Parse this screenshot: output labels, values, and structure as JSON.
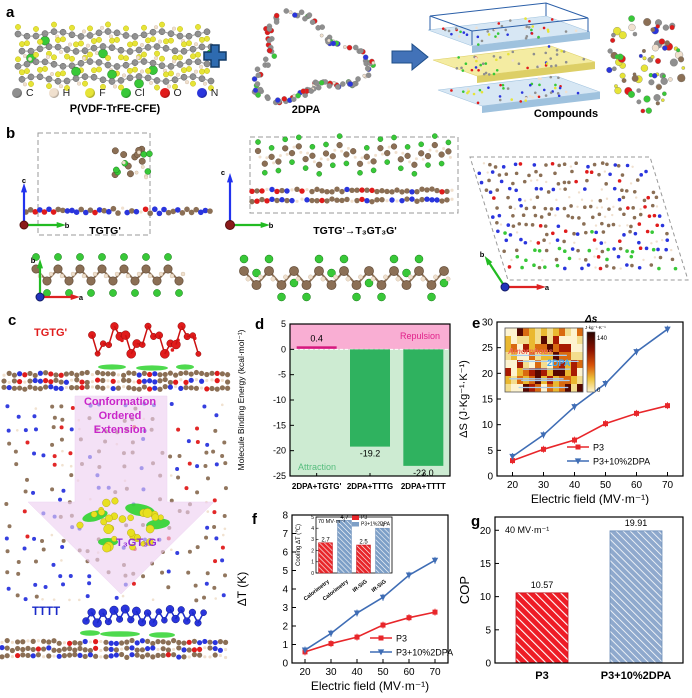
{
  "panels": {
    "a": {
      "label": "a",
      "polymer_label": "P(VDF-TrFE-CFE)",
      "dopant_label": "2DPA",
      "compound_label": "Compounds",
      "legend": [
        {
          "symbol": "C",
          "color": "#8f8f8f"
        },
        {
          "symbol": "H",
          "color": "#f0e0ce"
        },
        {
          "symbol": "F",
          "color": "#e6e437"
        },
        {
          "symbol": "Cl",
          "color": "#38c838"
        },
        {
          "symbol": "O",
          "color": "#e01b1b"
        },
        {
          "symbol": "N",
          "color": "#2a35dd"
        }
      ]
    },
    "b": {
      "label": "b",
      "left_conformation": "TGTG'",
      "transition": "TGTG'→T₃GT₃G'",
      "axes": {
        "a": "a",
        "b": "b",
        "c": "c"
      }
    },
    "c": {
      "label": "c",
      "top_conformation": "TGTG'",
      "arrow_text": [
        "Conformation",
        "Ordered",
        "Extension"
      ],
      "mid_conformation": "T₃GT₃G'",
      "bottom_conformation": "TTTT"
    },
    "d": {
      "label": "d"
    },
    "e": {
      "label": "e"
    },
    "f": {
      "label": "f"
    },
    "g": {
      "label": "g"
    }
  },
  "chart_data": [
    {
      "id": "d",
      "panel": "d",
      "type": "bar",
      "categories": [
        "2DPA+TGTG'",
        "2DPA+TTTG",
        "2DPA+TTTT"
      ],
      "values": [
        0.4,
        -19.2,
        -23.0
      ],
      "value_labels": [
        "0.4",
        "-19.2",
        "-23.0"
      ],
      "ylabel": "Molecule Binding Energy (kcal·mol⁻¹)",
      "ylim": [
        -25,
        5
      ],
      "yticks": [
        5,
        0,
        -5,
        -10,
        -15,
        -20,
        -25
      ],
      "region_positive_label": "Repulsion",
      "region_negative_label": "Attraction",
      "colors": {
        "region_positive": "#f9aed3",
        "region_negative": "#cdebd2",
        "bar_positive": "#d6187f",
        "bar_negative": "#2fb25f",
        "repulsion_text": "#e0218a",
        "attraction_text": "#57bd7e"
      }
    },
    {
      "id": "e",
      "panel": "e",
      "type": "line",
      "x": [
        20,
        30,
        40,
        50,
        60,
        70
      ],
      "series": [
        {
          "name": "P3",
          "color": "#e8262a",
          "marker": "square",
          "values": [
            3.0,
            5.2,
            7.0,
            10.2,
            12.2,
            13.7
          ]
        },
        {
          "name": "P3+10%2DPA",
          "color": "#3f6db5",
          "marker": "triangle",
          "values": [
            3.8,
            8.0,
            13.5,
            18.0,
            24.2,
            28.6
          ]
        }
      ],
      "xlabel": "Electric field (MV·m⁻¹)",
      "ylabel": "ΔS (J·Kg⁻¹·K⁻¹)",
      "xlim": [
        15,
        75
      ],
      "ylim": [
        0,
        30
      ],
      "xticks": [
        20,
        30,
        40,
        50,
        60,
        70
      ],
      "yticks": [
        0,
        5,
        10,
        15,
        20,
        25,
        30
      ],
      "legend_position": "bottom-right",
      "inset": {
        "type": "heatmap-image",
        "title": "Δs",
        "colorbar_unit": "J·kg⁻¹·K⁻¹",
        "colorbar_top": "140",
        "colorbar_bottom": "0",
        "overlay_red": "Amorphous",
        "overlay_blue": "2DPA"
      }
    },
    {
      "id": "f",
      "panel": "f",
      "type": "line",
      "x": [
        20,
        30,
        40,
        50,
        60,
        70
      ],
      "series": [
        {
          "name": "P3",
          "color": "#e8262a",
          "marker": "square",
          "values": [
            0.6,
            1.05,
            1.4,
            2.05,
            2.45,
            2.75
          ]
        },
        {
          "name": "P3+10%2DPA",
          "color": "#3f6db5",
          "marker": "triangle",
          "values": [
            0.7,
            1.6,
            2.7,
            3.55,
            4.75,
            5.55
          ]
        }
      ],
      "xlabel": "Electric field (MV·m⁻¹)",
      "ylabel": "ΔT (K)",
      "xlim": [
        15,
        75
      ],
      "ylim": [
        0,
        8
      ],
      "xticks": [
        20,
        30,
        40,
        50,
        60,
        70
      ],
      "yticks": [
        0,
        1,
        2,
        3,
        4,
        5,
        6,
        7,
        8
      ],
      "legend_position": "bottom-right",
      "inset": {
        "type": "bar",
        "annotation": "70 MV·m⁻¹",
        "ylabel": "Cooling ΔT (℃)",
        "ylim": [
          0,
          5
        ],
        "yticks": [
          0,
          1,
          2,
          3,
          4,
          5
        ],
        "categories": [
          "Calorimetry",
          "Calorimetry",
          "IR-SiG",
          "IR-SiG"
        ],
        "values": [
          2.7,
          4.7,
          2.5,
          4
        ],
        "value_labels": [
          "2.7",
          "4.7",
          "2.5",
          "4"
        ],
        "legend": [
          {
            "name": "P3",
            "color": "#e8262a"
          },
          {
            "name": "P3+1%2DPA",
            "color": "#7d9fc7"
          }
        ]
      }
    },
    {
      "id": "g",
      "panel": "g",
      "type": "bar",
      "categories": [
        "P3",
        "P3+10%2DPA"
      ],
      "values": [
        10.57,
        19.91
      ],
      "value_labels": [
        "10.57",
        "19.91"
      ],
      "annotation": "40 MV·m⁻¹",
      "ylabel": "COP",
      "ylim": [
        0,
        22
      ],
      "yticks": [
        0,
        5,
        10,
        15,
        20
      ],
      "bar_colors": [
        "#ee1c25",
        "#8fa9cd"
      ]
    }
  ]
}
